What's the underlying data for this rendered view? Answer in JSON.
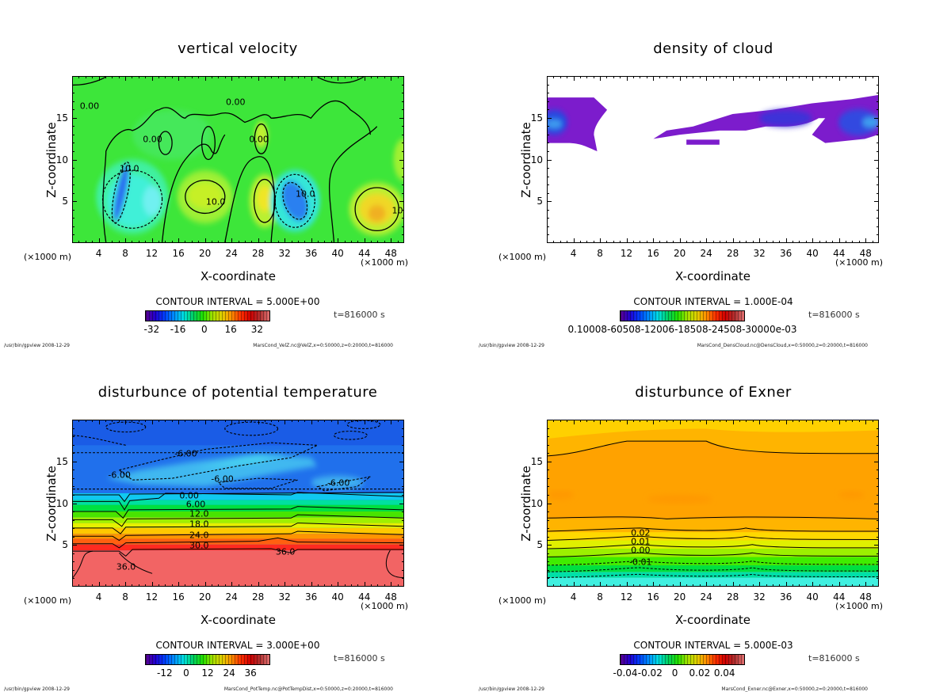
{
  "chart_data": [
    {
      "type": "heatmap",
      "title": "vertical velocity",
      "xlabel": "X-coordinate",
      "ylabel": "Z-coordinate",
      "x_unit_left": "(×1000 m)",
      "x_unit_right": "(×1000 m)",
      "xlim": [
        0,
        50
      ],
      "ylim": [
        0,
        20
      ],
      "xticks": [
        "4",
        "8",
        "12",
        "16",
        "20",
        "24",
        "28",
        "32",
        "36",
        "40",
        "44",
        "48"
      ],
      "yticks": [
        "5",
        "10",
        "15"
      ],
      "contour_interval": "CONTOUR INTERVAL = 5.000E+00",
      "colorbar": {
        "ticks": [
          "-32",
          "-16",
          "0",
          "16",
          "32"
        ],
        "tick_values": [
          -32,
          -16,
          0,
          16,
          32
        ],
        "range": [
          -36,
          40
        ]
      },
      "time": "t=816000 s",
      "footer_left": "/usr/bin/gpview  2008-12-29",
      "footer_right": "MarsCond_VelZ.nc@VelZ,x=0:50000,z=0:20000,t=816000",
      "contour_labels": [
        "0.00",
        "0.00",
        "0.00",
        "0.00",
        "10.0",
        "10.0",
        "10.0",
        "10.0"
      ]
    },
    {
      "type": "heatmap",
      "title": "density of cloud",
      "xlabel": "X-coordinate",
      "ylabel": "Z-coordinate",
      "x_unit_left": "(×1000 m)",
      "x_unit_right": "(×1000 m)",
      "xlim": [
        0,
        50
      ],
      "ylim": [
        0,
        20
      ],
      "xticks": [
        "4",
        "8",
        "12",
        "16",
        "20",
        "24",
        "28",
        "32",
        "36",
        "40",
        "44",
        "48"
      ],
      "yticks": [
        "5",
        "10",
        "15"
      ],
      "contour_interval": "CONTOUR INTERVAL = 1.000E-04",
      "colorbar": {
        "ticks_overlapped": "0.10008-60508-12006-18508-24508-30000e-03"
      },
      "time": "t=816000 s",
      "footer_left": "/usr/bin/gpview  2008-12-29",
      "footer_right": "MarsCond_DensCloud.nc@DensCloud,x=0:50000,z=0:20000,t=816000",
      "contour_labels": []
    },
    {
      "type": "heatmap",
      "title": "disturbunce of potential temperature",
      "xlabel": "X-coordinate",
      "ylabel": "Z-coordinate",
      "x_unit_left": "(×1000 m)",
      "x_unit_right": "(×1000 m)",
      "xlim": [
        0,
        50
      ],
      "ylim": [
        0,
        20
      ],
      "xticks": [
        "4",
        "8",
        "12",
        "16",
        "20",
        "24",
        "28",
        "32",
        "36",
        "40",
        "44",
        "48"
      ],
      "yticks": [
        "5",
        "10",
        "15"
      ],
      "contour_interval": "CONTOUR INTERVAL = 3.000E+00",
      "colorbar": {
        "ticks": [
          "-12",
          "0",
          "12",
          "24",
          "36"
        ],
        "tick_values": [
          -12,
          0,
          12,
          24,
          36
        ],
        "range": [
          -23,
          47
        ]
      },
      "time": "t=816000 s",
      "footer_left": "/usr/bin/gpview  2008-12-29",
      "footer_right": "MarsCond_PotTemp.nc@PotTempDist,x=0:50000,z=0:20000,t=816000",
      "contour_labels": [
        "-6.00",
        "-6.00",
        "-6.00",
        "-6.00",
        "0.00",
        "6.00",
        "12.0",
        "18.0",
        "24.0",
        "30.0",
        "36.0",
        "36.0"
      ]
    },
    {
      "type": "heatmap",
      "title": "disturbunce of Exner",
      "xlabel": "X-coordinate",
      "ylabel": "Z-coordinate",
      "x_unit_left": "(×1000 m)",
      "x_unit_right": "(×1000 m)",
      "xlim": [
        0,
        50
      ],
      "ylim": [
        0,
        20
      ],
      "xticks": [
        "4",
        "8",
        "12",
        "16",
        "20",
        "24",
        "28",
        "32",
        "36",
        "40",
        "44",
        "48"
      ],
      "yticks": [
        "5",
        "10",
        "15"
      ],
      "contour_interval": "CONTOUR INTERVAL = 5.000E-03",
      "colorbar": {
        "ticks": [
          "-0.04",
          "-0.02",
          "0",
          "0.02",
          "0.04"
        ],
        "tick_values": [
          -0.04,
          -0.02,
          0,
          0.02,
          0.04
        ],
        "range": [
          -0.0445,
          0.0565
        ]
      },
      "time": "t=816000 s",
      "footer_left": "/usr/bin/gpview  2008-12-29",
      "footer_right": "MarsCond_Exner.nc@Exner,x=0:50000,z=0:20000,t=816000",
      "contour_labels": [
        "0.02",
        "0.01",
        "0.00",
        "-0.01"
      ]
    }
  ]
}
